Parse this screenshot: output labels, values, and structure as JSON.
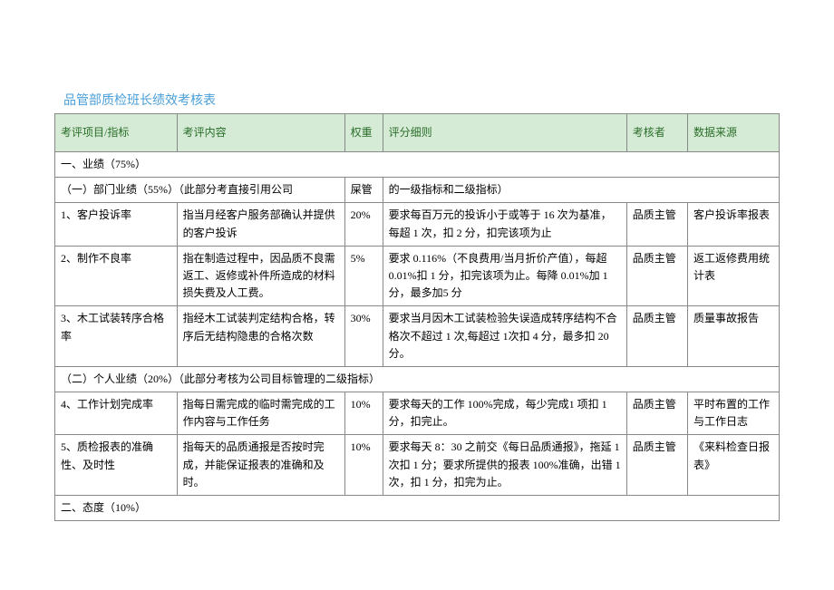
{
  "title": "品管部质检班长绩效考核表",
  "headers": {
    "item": "考评项目/指标",
    "content": "考评内容",
    "weight": "权重",
    "rule": "评分细则",
    "reviewer": "考核者",
    "source": "数据来源"
  },
  "section1": "一、业绩（75%）",
  "subsection1_part1": "（一）部门业绩（55%）（此部分考直接引用公司",
  "subsection1_part2": "屎管",
  "subsection1_part3": "的一级指标和二级指标）",
  "row1": {
    "item": "1、客户投诉率",
    "content": "指当月经客户服务部确认并提供的客户投诉",
    "weight": "20%",
    "rule": "要求每百万元的投诉小于或等于 16 次为基准，每超 1 次，扣 2 分，扣完该项为止",
    "reviewer": "品质主管",
    "source": "客户投诉率报表"
  },
  "row2": {
    "item": "2、制作不良率",
    "content": "指在制造过程中，因品质不良需返工、返修或补件所造成的材料损失费及人工费。",
    "weight": "5%",
    "rule": "要求 0.116%（不良费用/当月折价产值），每超 0.01%扣 1 分，扣完该项为止。每降 0.01%加 1 分，最多加5 分",
    "reviewer": "品质主管",
    "source": "返工返修费用统计表"
  },
  "row3": {
    "item": "3、木工试装转序合格率",
    "content": "指经木工试装判定结构合格，转序后无结构隐患的合格次数",
    "weight": "30%",
    "rule": "要求当月因木工试装检验失误造成转序结构不合格次不超过 1 次,每超过 1次扣 4 分，最多扣 20 分。",
    "reviewer": "品质主管",
    "source": "质量事故报告"
  },
  "subsection2": "（二）个人业绩（20%）（此部分考核为公司目标管理的二级指标）",
  "row4": {
    "item": "4、工作计划完成率",
    "content": "指每日需完成的临时需完成的工作内容与工作任务",
    "weight": "10%",
    "rule": "要求每天的工作 100%完成，每少完成1 项扣 1 分，扣完止。",
    "reviewer": "品质主管",
    "source": "平时布置的工作与工作日志"
  },
  "row5": {
    "item": "5、质检报表的准确性、及时性",
    "content": "指每天的品质通报是否按时完成，并能保证报表的准确和及时。",
    "weight": "10%",
    "rule": "要求每天 8：30 之前交《每日品质通报》，拖延 1 次扣 1 分；要求所提供的报表 100%准确，出错 1 次，扣 1 分，扣完为止。",
    "reviewer": "品质主管",
    "source": "《来料检查日报表》"
  },
  "section2": "二、态度（10%）"
}
